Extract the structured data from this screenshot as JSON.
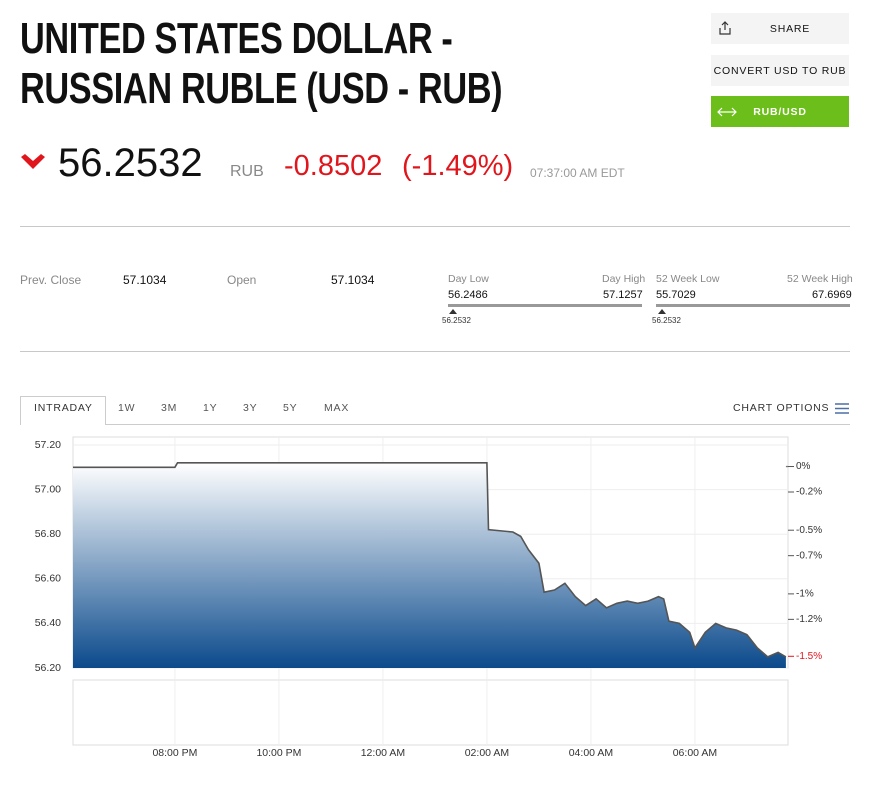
{
  "header": {
    "title_lines": [
      "UNITED STATES DOLLAR -",
      "RUSSIAN RUBLE (USD - RUB)"
    ],
    "buttons": [
      "SHARE",
      "CONVERT USD TO RUB",
      "RUB/USD"
    ]
  },
  "quote": {
    "price": "56.2532",
    "currency": "RUB",
    "change": "-0.8502",
    "change_pct": "(-1.49%)",
    "time": "07:37:00 AM EDT"
  },
  "stats": {
    "prev_close": {
      "label": "Prev. Close",
      "value": "57.1034"
    },
    "open": {
      "label": "Open",
      "value": "57.1034"
    },
    "day_range": {
      "low_label": "Day Low",
      "high_label": "Day High",
      "low": "56.2486",
      "high": "57.1257",
      "current": "56.2532"
    },
    "week52_range": {
      "low_label": "52 Week Low",
      "high_label": "52 Week High",
      "low": "55.7029",
      "high": "67.6969",
      "current": "56.2532"
    }
  },
  "tabs": [
    "INTRADAY",
    "1W",
    "3M",
    "1Y",
    "3Y",
    "5Y",
    "MAX"
  ],
  "chart_options": "CHART OPTIONS",
  "chart_data": {
    "type": "area",
    "x": [
      18.04,
      20.0,
      20.05,
      26.0,
      26.03,
      26.5,
      26.65,
      26.8,
      27.0,
      27.1,
      27.3,
      27.5,
      27.7,
      27.9,
      28.1,
      28.3,
      28.5,
      28.7,
      28.9,
      29.1,
      29.3,
      29.4,
      29.5,
      29.7,
      29.9,
      30.0,
      30.2,
      30.4,
      30.6,
      30.8,
      31.0,
      31.2,
      31.4,
      31.6,
      31.75
    ],
    "values": [
      57.1,
      57.1,
      57.12,
      57.12,
      56.82,
      56.81,
      56.79,
      56.73,
      56.67,
      56.54,
      56.55,
      56.58,
      56.52,
      56.48,
      56.51,
      56.47,
      56.49,
      56.5,
      56.49,
      56.5,
      56.52,
      56.51,
      56.41,
      56.4,
      56.36,
      56.29,
      56.36,
      56.4,
      56.38,
      56.37,
      56.35,
      56.29,
      56.25,
      56.27,
      56.25
    ],
    "color": "#555555",
    "fill": "#0b4a8c",
    "reference_line": 57.1034,
    "xlim": [
      18.04,
      31.79
    ],
    "xticks": [
      {
        "value": 20,
        "label": "08:00 PM"
      },
      {
        "value": 22,
        "label": "10:00 PM"
      },
      {
        "value": 24,
        "label": "12:00 AM"
      },
      {
        "value": 26,
        "label": "02:00 AM"
      },
      {
        "value": 28,
        "label": "04:00 AM"
      },
      {
        "value": 30,
        "label": "06:00 AM"
      }
    ],
    "ylim": [
      56.2,
      57.2
    ],
    "yticks": [
      {
        "value": 56.2,
        "label": "56.20"
      },
      {
        "value": 56.4,
        "label": "56.40"
      },
      {
        "value": 56.6,
        "label": "56.60"
      },
      {
        "value": 56.8,
        "label": "56.80"
      },
      {
        "value": 57.0,
        "label": "57.00"
      },
      {
        "value": 57.2,
        "label": "57.20"
      }
    ],
    "y2lim": [
      -1.582,
      0.169
    ],
    "y2ticks": [
      {
        "value": 0,
        "label": "0%"
      },
      {
        "value": -0.2,
        "label": "-0.2%"
      },
      {
        "value": -0.5,
        "label": "-0.5%"
      },
      {
        "value": -0.7,
        "label": "-0.7%"
      },
      {
        "value": -1,
        "label": "-1%"
      },
      {
        "value": -1.2,
        "label": "-1.2%"
      }
    ],
    "y2_marker": {
      "value": -1.49,
      "label": "-1.5%",
      "color": "#e0161c"
    },
    "grid": true
  }
}
